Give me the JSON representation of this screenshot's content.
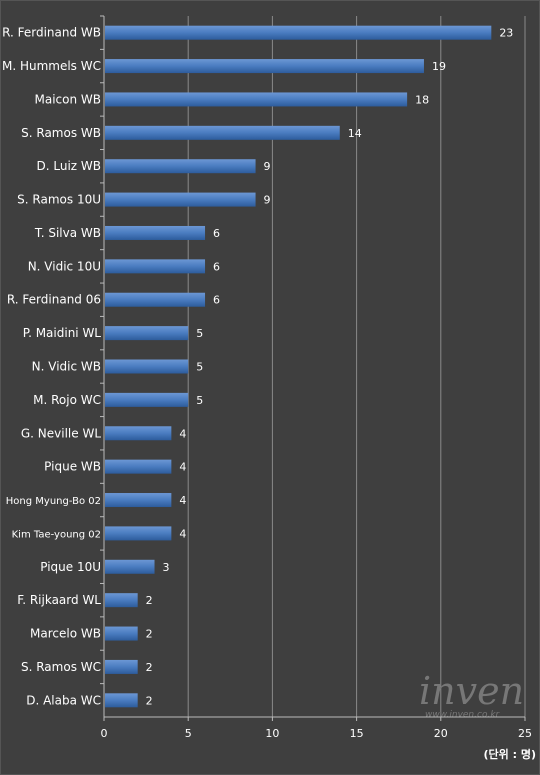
{
  "chart_data": {
    "type": "bar",
    "orientation": "horizontal",
    "categories": [
      "R. Ferdinand WB",
      "M. Hummels WC",
      "Maicon WB",
      "S. Ramos WB",
      "D. Luiz WB",
      "S. Ramos 10U",
      "T. Silva WB",
      "N. Vidic 10U",
      "R. Ferdinand 06",
      "P. Maidini WL",
      "N. Vidic WB",
      "M. Rojo WC",
      "G. Neville WL",
      "Pique WB",
      "Hong Myung-Bo 02",
      "Kim Tae-young 02",
      "Pique 10U",
      "F. Rijkaard WL",
      "Marcelo WB",
      "S. Ramos WC",
      "D. Alaba WC"
    ],
    "values": [
      23,
      19,
      18,
      14,
      9,
      9,
      6,
      6,
      6,
      5,
      5,
      5,
      4,
      4,
      4,
      4,
      3,
      2,
      2,
      2,
      2
    ],
    "xlim": [
      0,
      25
    ],
    "xticks": [
      0,
      5,
      10,
      15,
      20,
      25
    ],
    "unit_label": "(단위 : 명)",
    "grid": true,
    "bar_color": "#4f81bd",
    "background_color": "#3f3f3f"
  },
  "watermark": {
    "main": "inven",
    "sub": "www.inven.co.kr"
  }
}
